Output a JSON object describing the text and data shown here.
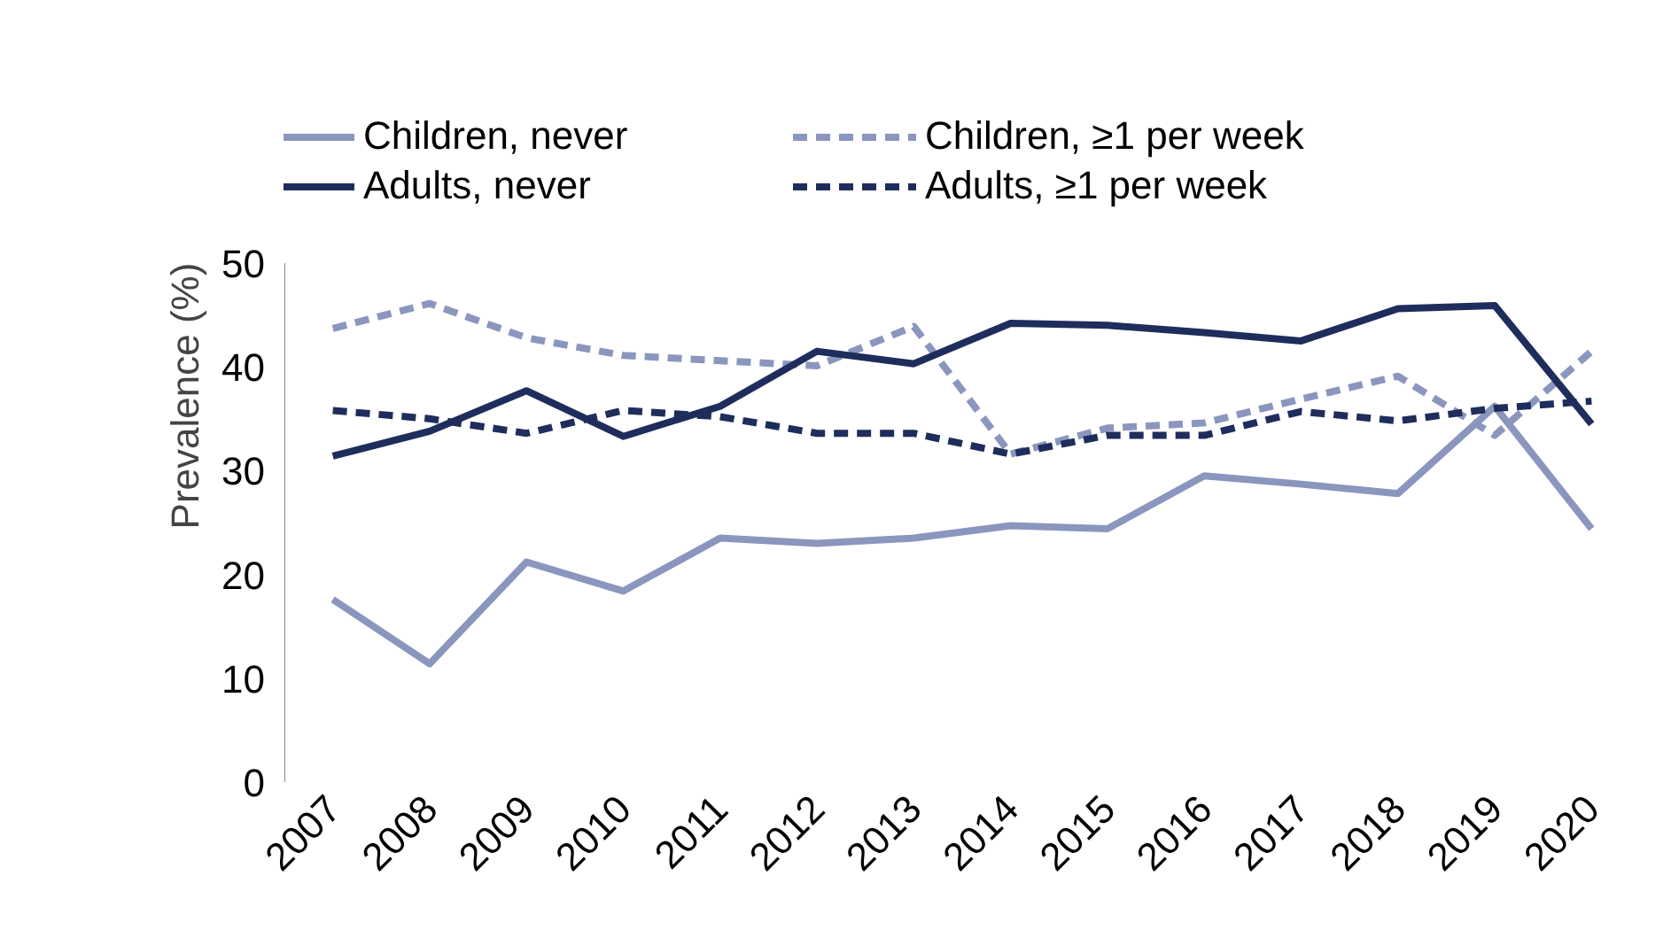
{
  "chart_data": {
    "type": "line",
    "ylabel": "Prevalence (%)",
    "categories": [
      "2007",
      "2008",
      "2009",
      "2010",
      "2011",
      "2012",
      "2013",
      "2014",
      "2015",
      "2016",
      "2017",
      "2018",
      "2019",
      "2020"
    ],
    "series": [
      {
        "name": "Children, never",
        "color": "#8b96bf",
        "line_style": "solid",
        "values": [
          17.6,
          11.4,
          21.2,
          18.4,
          23.5,
          23.0,
          23.5,
          24.7,
          24.4,
          29.5,
          28.7,
          27.8,
          36.2,
          24.4
        ]
      },
      {
        "name": "Children, ≥1 per week",
        "color": "#8b96bf",
        "line_style": "dashed",
        "values": [
          43.7,
          46.1,
          42.8,
          41.1,
          40.6,
          40.1,
          43.9,
          31.6,
          34.1,
          34.6,
          36.9,
          39.1,
          33.4,
          41.5
        ]
      },
      {
        "name": "Adults, never",
        "color": "#1f2d5c",
        "line_style": "solid",
        "values": [
          31.4,
          33.8,
          37.7,
          33.3,
          36.2,
          41.5,
          40.3,
          44.2,
          44.0,
          43.3,
          42.5,
          45.6,
          45.9,
          34.5
        ]
      },
      {
        "name": "Adults, ≥1 per week",
        "color": "#1f2d5c",
        "line_style": "dashed",
        "values": [
          35.8,
          35.0,
          33.6,
          35.8,
          35.2,
          33.6,
          33.6,
          31.6,
          33.4,
          33.4,
          35.7,
          34.8,
          36.0,
          36.7
        ]
      }
    ],
    "ylim": [
      0,
      50
    ],
    "yticks": [
      0,
      10,
      20,
      30,
      40,
      50
    ],
    "grid": false,
    "legend": "top",
    "marker": "none"
  }
}
